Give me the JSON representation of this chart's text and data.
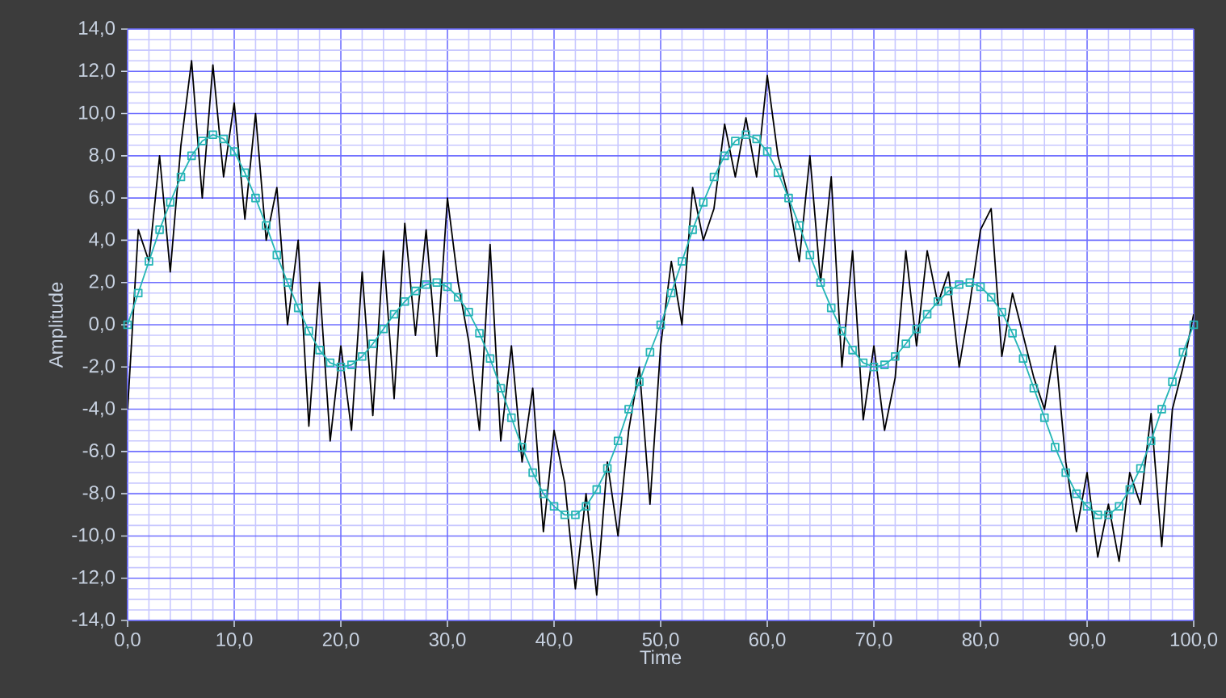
{
  "chart_data": {
    "type": "line",
    "xlabel": "Time",
    "ylabel": "Amplitude",
    "xlim": [
      0,
      100
    ],
    "ylim": [
      -14,
      14
    ],
    "xticks": [
      {
        "value": 0,
        "label": "0,0"
      },
      {
        "value": 10,
        "label": "10,0"
      },
      {
        "value": 20,
        "label": "20,0"
      },
      {
        "value": 30,
        "label": "30,0"
      },
      {
        "value": 40,
        "label": "40,0"
      },
      {
        "value": 50,
        "label": "50,0"
      },
      {
        "value": 60,
        "label": "60,0"
      },
      {
        "value": 70,
        "label": "70,0"
      },
      {
        "value": 80,
        "label": "80,0"
      },
      {
        "value": 90,
        "label": "90,0"
      },
      {
        "value": 100,
        "label": "100,0"
      },
      {
        "value": 2,
        "label": null
      },
      {
        "value": 4,
        "label": null
      },
      {
        "value": 6,
        "label": null
      },
      {
        "value": 8,
        "label": null
      },
      {
        "value": 12,
        "label": null
      },
      {
        "value": 14,
        "label": null
      },
      {
        "value": 16,
        "label": null
      },
      {
        "value": 18,
        "label": null
      },
      {
        "value": 22,
        "label": null
      },
      {
        "value": 24,
        "label": null
      },
      {
        "value": 26,
        "label": null
      },
      {
        "value": 28,
        "label": null
      },
      {
        "value": 32,
        "label": null
      },
      {
        "value": 34,
        "label": null
      },
      {
        "value": 36,
        "label": null
      },
      {
        "value": 38,
        "label": null
      },
      {
        "value": 42,
        "label": null
      },
      {
        "value": 44,
        "label": null
      },
      {
        "value": 46,
        "label": null
      },
      {
        "value": 48,
        "label": null
      },
      {
        "value": 52,
        "label": null
      },
      {
        "value": 54,
        "label": null
      },
      {
        "value": 56,
        "label": null
      },
      {
        "value": 58,
        "label": null
      },
      {
        "value": 62,
        "label": null
      },
      {
        "value": 64,
        "label": null
      },
      {
        "value": 66,
        "label": null
      },
      {
        "value": 68,
        "label": null
      },
      {
        "value": 72,
        "label": null
      },
      {
        "value": 74,
        "label": null
      },
      {
        "value": 76,
        "label": null
      },
      {
        "value": 78,
        "label": null
      },
      {
        "value": 82,
        "label": null
      },
      {
        "value": 84,
        "label": null
      },
      {
        "value": 86,
        "label": null
      },
      {
        "value": 88,
        "label": null
      },
      {
        "value": 92,
        "label": null
      },
      {
        "value": 94,
        "label": null
      },
      {
        "value": 96,
        "label": null
      },
      {
        "value": 98,
        "label": null
      }
    ],
    "yticks": [
      {
        "value": -14,
        "label": "-14,0"
      },
      {
        "value": -12,
        "label": "-12,0"
      },
      {
        "value": -10,
        "label": "-10,0"
      },
      {
        "value": -8,
        "label": "-8,0"
      },
      {
        "value": -6,
        "label": "-6,0"
      },
      {
        "value": -4,
        "label": "-4,0"
      },
      {
        "value": -2,
        "label": "-2,0"
      },
      {
        "value": 0,
        "label": "0,0"
      },
      {
        "value": 2,
        "label": "2,0"
      },
      {
        "value": 4,
        "label": "4,0"
      },
      {
        "value": 6,
        "label": "6,0"
      },
      {
        "value": 8,
        "label": "8,0"
      },
      {
        "value": 10,
        "label": "10,0"
      },
      {
        "value": 12,
        "label": "12,0"
      },
      {
        "value": 14,
        "label": "14,0"
      },
      {
        "value": -13.5,
        "label": null
      },
      {
        "value": -13,
        "label": null
      },
      {
        "value": -12.5,
        "label": null
      },
      {
        "value": -11.5,
        "label": null
      },
      {
        "value": -11,
        "label": null
      },
      {
        "value": -10.5,
        "label": null
      },
      {
        "value": -9.5,
        "label": null
      },
      {
        "value": -9,
        "label": null
      },
      {
        "value": -8.5,
        "label": null
      },
      {
        "value": -7.5,
        "label": null
      },
      {
        "value": -7,
        "label": null
      },
      {
        "value": -6.5,
        "label": null
      },
      {
        "value": -5.5,
        "label": null
      },
      {
        "value": -5,
        "label": null
      },
      {
        "value": -4.5,
        "label": null
      },
      {
        "value": -3.5,
        "label": null
      },
      {
        "value": -3,
        "label": null
      },
      {
        "value": -2.5,
        "label": null
      },
      {
        "value": -1.5,
        "label": null
      },
      {
        "value": -1,
        "label": null
      },
      {
        "value": -0.5,
        "label": null
      },
      {
        "value": 0.5,
        "label": null
      },
      {
        "value": 1,
        "label": null
      },
      {
        "value": 1.5,
        "label": null
      },
      {
        "value": 2.5,
        "label": null
      },
      {
        "value": 3,
        "label": null
      },
      {
        "value": 3.5,
        "label": null
      },
      {
        "value": 4.5,
        "label": null
      },
      {
        "value": 5,
        "label": null
      },
      {
        "value": 5.5,
        "label": null
      },
      {
        "value": 6.5,
        "label": null
      },
      {
        "value": 7,
        "label": null
      },
      {
        "value": 7.5,
        "label": null
      },
      {
        "value": 8.5,
        "label": null
      },
      {
        "value": 9,
        "label": null
      },
      {
        "value": 9.5,
        "label": null
      },
      {
        "value": 10.5,
        "label": null
      },
      {
        "value": 11,
        "label": null
      },
      {
        "value": 11.5,
        "label": null
      },
      {
        "value": 12.5,
        "label": null
      },
      {
        "value": 13,
        "label": null
      },
      {
        "value": 13.5,
        "label": null
      }
    ],
    "grid": true,
    "x": [
      0,
      1,
      2,
      3,
      4,
      5,
      6,
      7,
      8,
      9,
      10,
      11,
      12,
      13,
      14,
      15,
      16,
      17,
      18,
      19,
      20,
      21,
      22,
      23,
      24,
      25,
      26,
      27,
      28,
      29,
      30,
      31,
      32,
      33,
      34,
      35,
      36,
      37,
      38,
      39,
      40,
      41,
      42,
      43,
      44,
      45,
      46,
      47,
      48,
      49,
      50,
      51,
      52,
      53,
      54,
      55,
      56,
      57,
      58,
      59,
      60,
      61,
      62,
      63,
      64,
      65,
      66,
      67,
      68,
      69,
      70,
      71,
      72,
      73,
      74,
      75,
      76,
      77,
      78,
      79,
      80,
      81,
      82,
      83,
      84,
      85,
      86,
      87,
      88,
      89,
      90,
      91,
      92,
      93,
      94,
      95,
      96,
      97,
      98,
      99,
      100
    ],
    "series": [
      {
        "color": "#000000",
        "marker": "none",
        "values": [
          -4,
          4.5,
          3,
          8,
          2.5,
          8.5,
          12.5,
          6,
          12.3,
          7,
          10.5,
          5,
          10,
          4,
          6.5,
          0,
          4,
          -4.8,
          2,
          -5.5,
          -1,
          -5,
          2.5,
          -4.3,
          3.5,
          -3.5,
          4.8,
          -0.5,
          4.5,
          -1.5,
          6,
          2,
          -0.8,
          -5,
          3.8,
          -5.5,
          -1,
          -6.5,
          -3,
          -9.8,
          -5,
          -7.5,
          -12.5,
          -8,
          -12.8,
          -6.5,
          -10,
          -5,
          -2,
          -8.5,
          -1,
          3,
          0,
          6.5,
          4,
          5.5,
          9.5,
          7,
          9.8,
          7,
          11.8,
          8,
          6,
          3,
          8,
          2,
          7,
          -2,
          3.5,
          -4.5,
          -1,
          -5,
          -2.5,
          3.5,
          -1,
          3.5,
          1,
          2.5,
          -2,
          1,
          4.5,
          5.5,
          -1.5,
          1.5,
          -0.5,
          -2.5,
          -4,
          -1,
          -6.5,
          -9.8,
          -7,
          -11,
          -8.5,
          -11.2,
          -7,
          -8.5,
          -4.2,
          -10.5,
          -4,
          -2,
          0.5
        ]
      },
      {
        "color": "#25b5b5",
        "marker": "square",
        "values": [
          0,
          1.5,
          3,
          4.5,
          5.8,
          7,
          8,
          8.7,
          9,
          8.8,
          8.2,
          7.2,
          6,
          4.7,
          3.3,
          2,
          0.8,
          -0.3,
          -1.2,
          -1.8,
          -2,
          -1.9,
          -1.5,
          -0.9,
          -0.2,
          0.5,
          1.1,
          1.6,
          1.9,
          2,
          1.8,
          1.3,
          0.6,
          -0.4,
          -1.6,
          -3,
          -4.4,
          -5.8,
          -7,
          -8,
          -8.6,
          -9,
          -9,
          -8.6,
          -7.8,
          -6.8,
          -5.5,
          -4,
          -2.7,
          -1.3,
          0,
          1.5,
          3,
          4.5,
          5.8,
          7,
          8,
          8.7,
          9,
          8.8,
          8.2,
          7.2,
          6,
          4.7,
          3.3,
          2,
          0.8,
          -0.3,
          -1.2,
          -1.8,
          -2,
          -1.9,
          -1.5,
          -0.9,
          -0.2,
          0.5,
          1.1,
          1.6,
          1.9,
          2,
          1.8,
          1.3,
          0.6,
          -0.4,
          -1.6,
          -3,
          -4.4,
          -5.8,
          -7,
          -8,
          -8.6,
          -9,
          -9,
          -8.6,
          -7.8,
          -6.8,
          -5.5,
          -4,
          -2.7,
          -1.3,
          0
        ]
      }
    ]
  }
}
